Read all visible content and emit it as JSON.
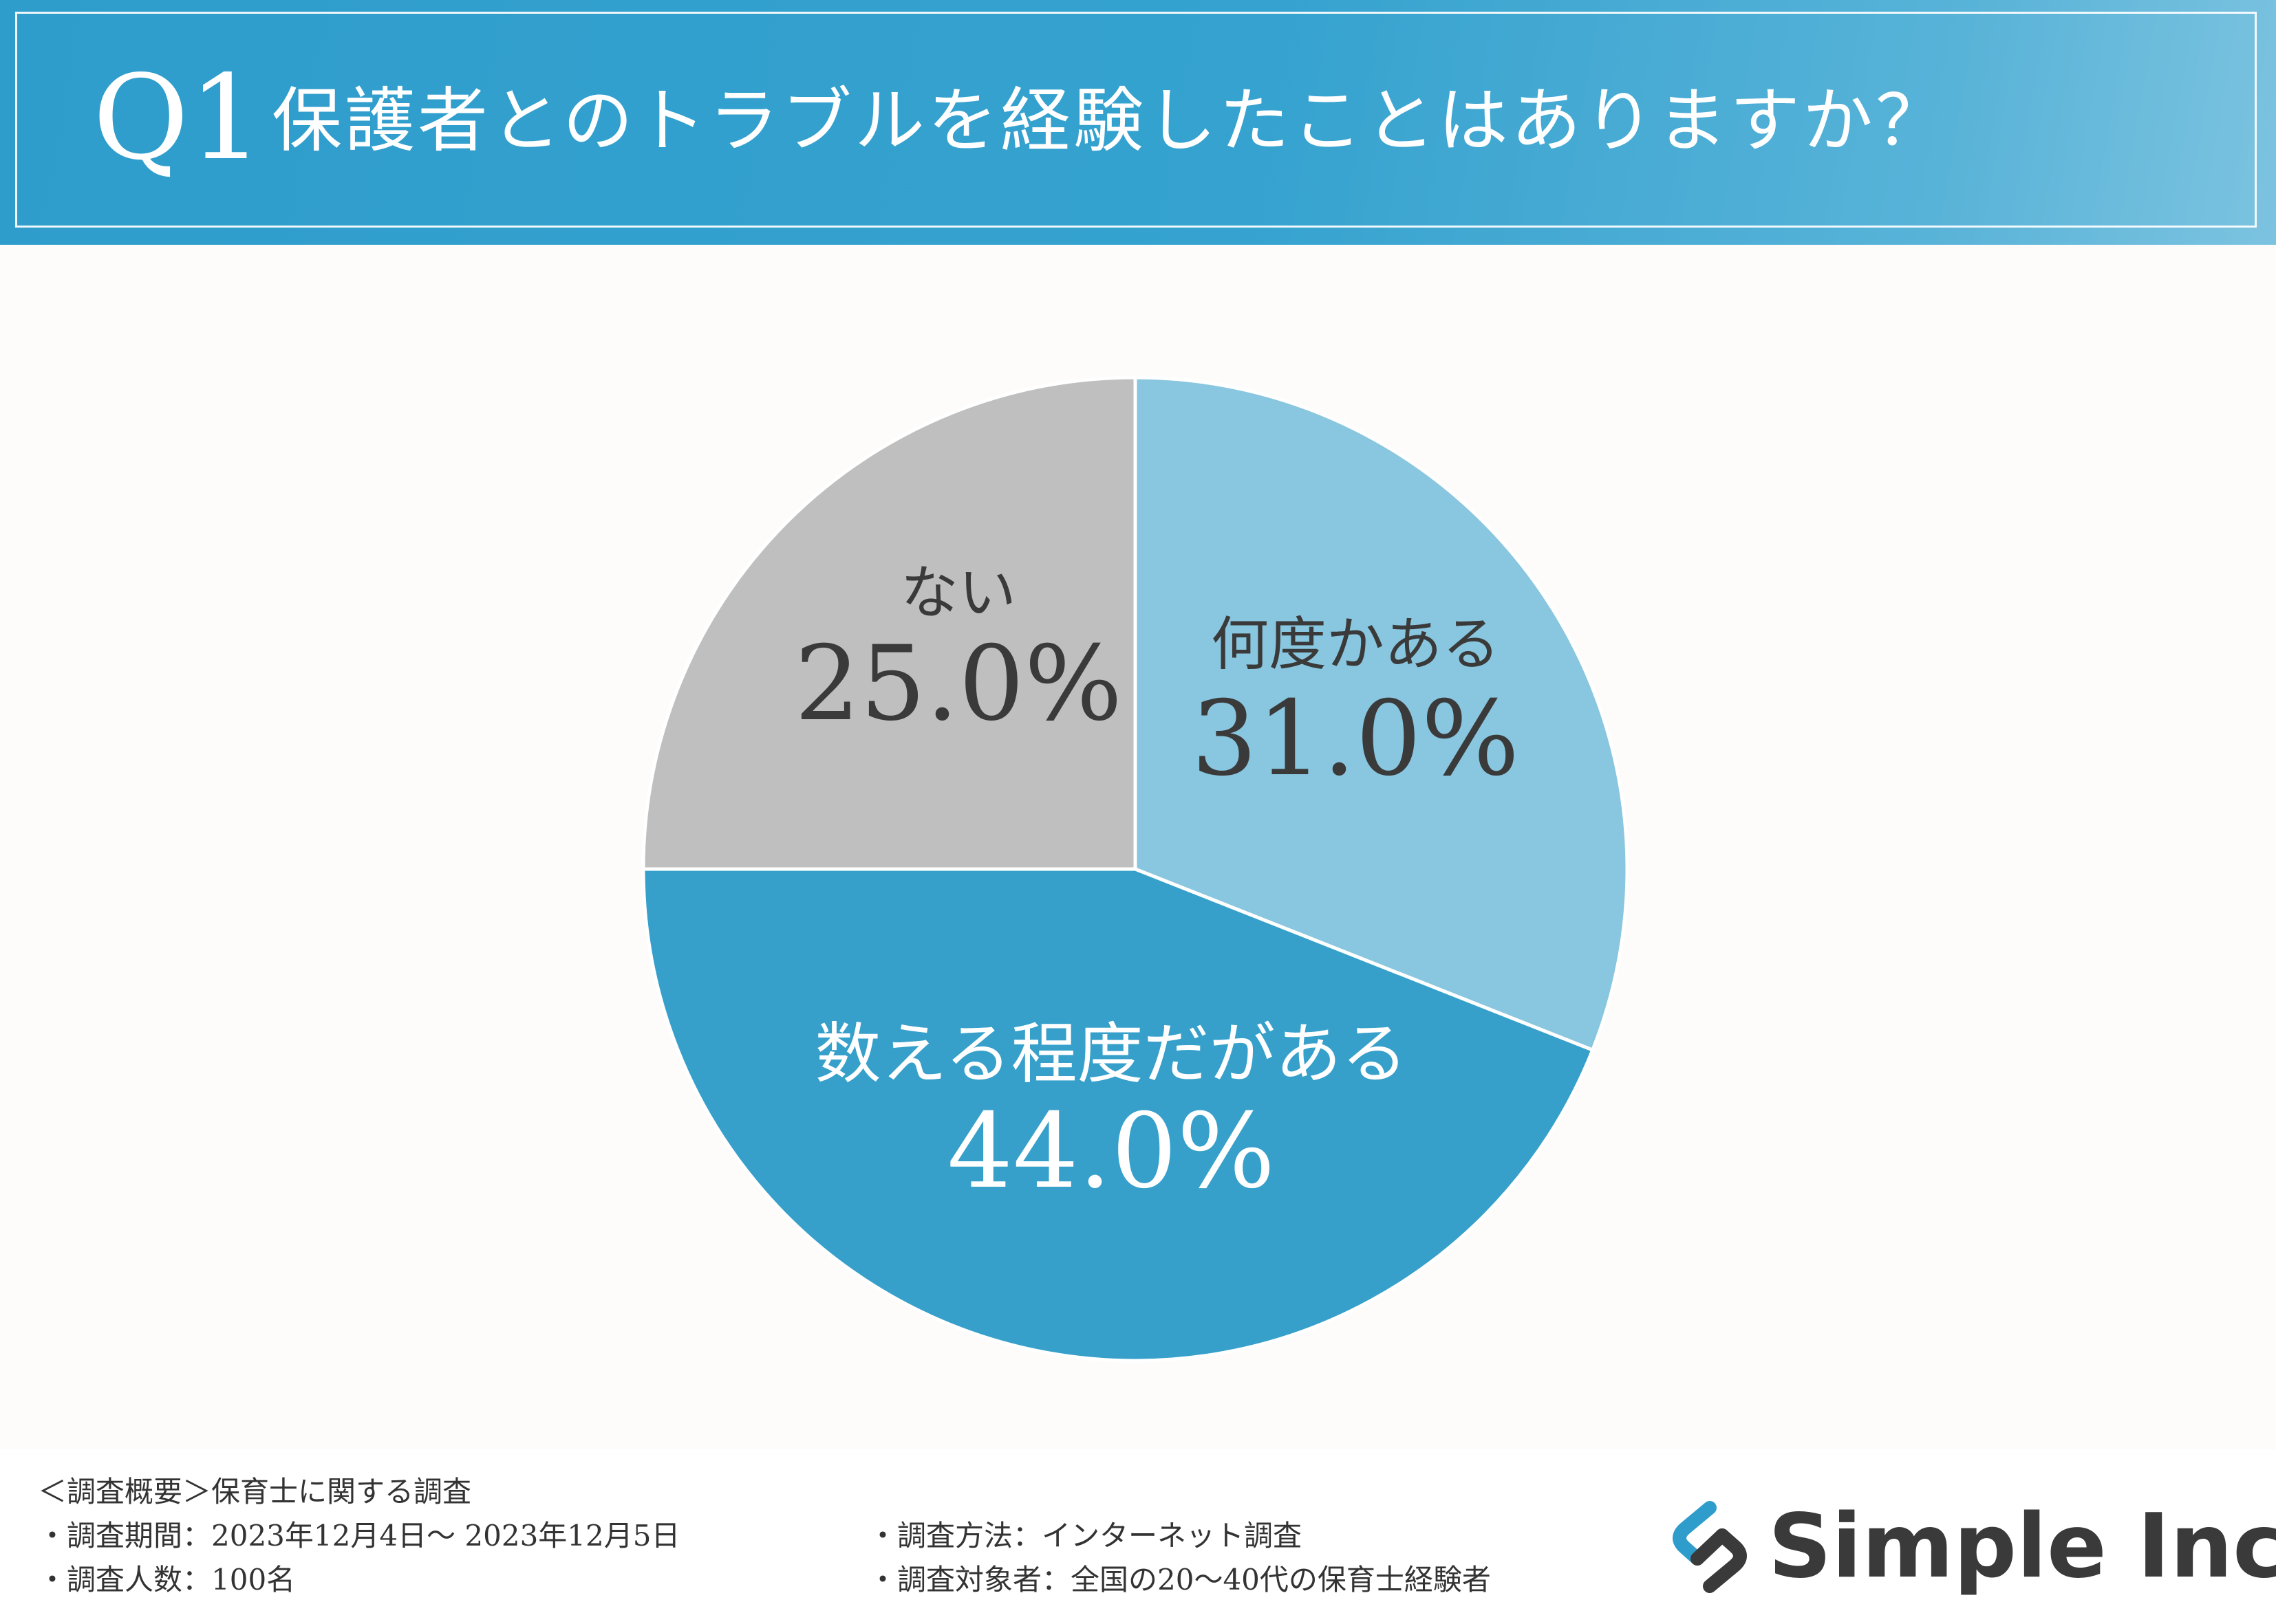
{
  "header": {
    "question_number": "Q1",
    "title": "保護者とのトラブルを経験したことはありますか？"
  },
  "chart_data": {
    "type": "pie",
    "title": "保護者とのトラブルを経験したことはありますか？",
    "start": "12 o'clock, clockwise",
    "slices": [
      {
        "label": "何度かある",
        "value": 31.0,
        "display": "31.0%",
        "color": "#89c6df",
        "text_color": "#3a3a3a"
      },
      {
        "label": "数える程度だがある",
        "value": 44.0,
        "display": "44.0%",
        "color": "#36a0cb",
        "text_color": "#ffffff"
      },
      {
        "label": "ない",
        "value": 25.0,
        "display": "25.0%",
        "color": "#bfbfbf",
        "text_color": "#3a3a3a"
      }
    ]
  },
  "footer": {
    "overview": "＜調査概要＞保育士に関する調査",
    "period": "・調査期間：2023年12月4日～ 2023年12月5日",
    "count": "・調査人数：100名",
    "method": "・調査方法：インターネット調査",
    "target": "・調査対象者：全国の20～40代の保育士経験者"
  },
  "logo": {
    "text": "Simple Inc.",
    "icon": "link-chain-icon",
    "colors": {
      "dark": "#3a3a3a",
      "accent": "#2f9dcc"
    }
  },
  "colors": {
    "header_bg": "#2f9dcc",
    "page_bg": "#fdfcfa"
  }
}
